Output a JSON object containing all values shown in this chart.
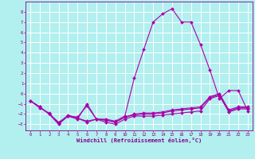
{
  "title": "",
  "xlabel": "Windchill (Refroidissement éolien,°C)",
  "ylabel": "",
  "bg_color": "#b2efef",
  "grid_color": "#ffffff",
  "line_color": "#aa00aa",
  "marker_color": "#aa00aa",
  "xlim": [
    -0.5,
    23.5
  ],
  "ylim": [
    -3.6,
    9.0
  ],
  "yticks": [
    -3,
    -2,
    -1,
    0,
    1,
    2,
    3,
    4,
    5,
    6,
    7,
    8
  ],
  "xticks": [
    0,
    1,
    2,
    3,
    4,
    5,
    6,
    7,
    8,
    9,
    10,
    11,
    12,
    13,
    14,
    15,
    16,
    17,
    18,
    19,
    20,
    21,
    22,
    23
  ],
  "series": [
    {
      "x": [
        0,
        1,
        2,
        3,
        4,
        5,
        6,
        7,
        8,
        9,
        10,
        11,
        12,
        13,
        14,
        15,
        16,
        17,
        18,
        19,
        20,
        21,
        22,
        23
      ],
      "y": [
        -0.7,
        -1.3,
        -2.0,
        -3.0,
        -2.2,
        -2.5,
        -1.0,
        -2.5,
        -2.8,
        -3.0,
        -2.5,
        -2.2,
        -2.2,
        -2.2,
        -2.1,
        -2.0,
        -1.9,
        -1.8,
        -1.7,
        -0.5,
        -0.2,
        -1.8,
        -1.5,
        -1.5
      ]
    },
    {
      "x": [
        0,
        1,
        2,
        3,
        4,
        5,
        6,
        7,
        8,
        9,
        10,
        11,
        12,
        13,
        14,
        15,
        16,
        17,
        18,
        19,
        20,
        21,
        22,
        23
      ],
      "y": [
        -0.7,
        -1.3,
        -2.0,
        -2.8,
        -2.2,
        -2.3,
        -1.2,
        -2.5,
        -2.5,
        -2.7,
        -2.2,
        1.5,
        4.3,
        7.0,
        7.8,
        8.3,
        7.0,
        7.0,
        4.8,
        2.3,
        -0.5,
        0.3,
        0.3,
        -1.7
      ]
    },
    {
      "x": [
        0,
        1,
        2,
        3,
        4,
        5,
        6,
        7,
        8,
        9,
        10,
        11,
        12,
        13,
        14,
        15,
        16,
        17,
        18,
        19,
        20,
        21,
        22,
        23
      ],
      "y": [
        -0.7,
        -1.4,
        -1.9,
        -2.9,
        -2.1,
        -2.4,
        -2.8,
        -2.5,
        -2.6,
        -2.8,
        -2.3,
        -2.1,
        -2.0,
        -2.0,
        -1.9,
        -1.7,
        -1.6,
        -1.5,
        -1.4,
        -0.4,
        -0.1,
        -1.7,
        -1.4,
        -1.4
      ]
    },
    {
      "x": [
        0,
        1,
        2,
        3,
        4,
        5,
        6,
        7,
        8,
        9,
        10,
        11,
        12,
        13,
        14,
        15,
        16,
        17,
        18,
        19,
        20,
        21,
        22,
        23
      ],
      "y": [
        -0.7,
        -1.3,
        -2.0,
        -2.9,
        -2.2,
        -2.4,
        -2.7,
        -2.5,
        -2.6,
        -2.8,
        -2.3,
        -2.0,
        -1.9,
        -1.9,
        -1.8,
        -1.6,
        -1.5,
        -1.4,
        -1.3,
        -0.3,
        0.0,
        -1.6,
        -1.3,
        -1.3
      ]
    }
  ]
}
